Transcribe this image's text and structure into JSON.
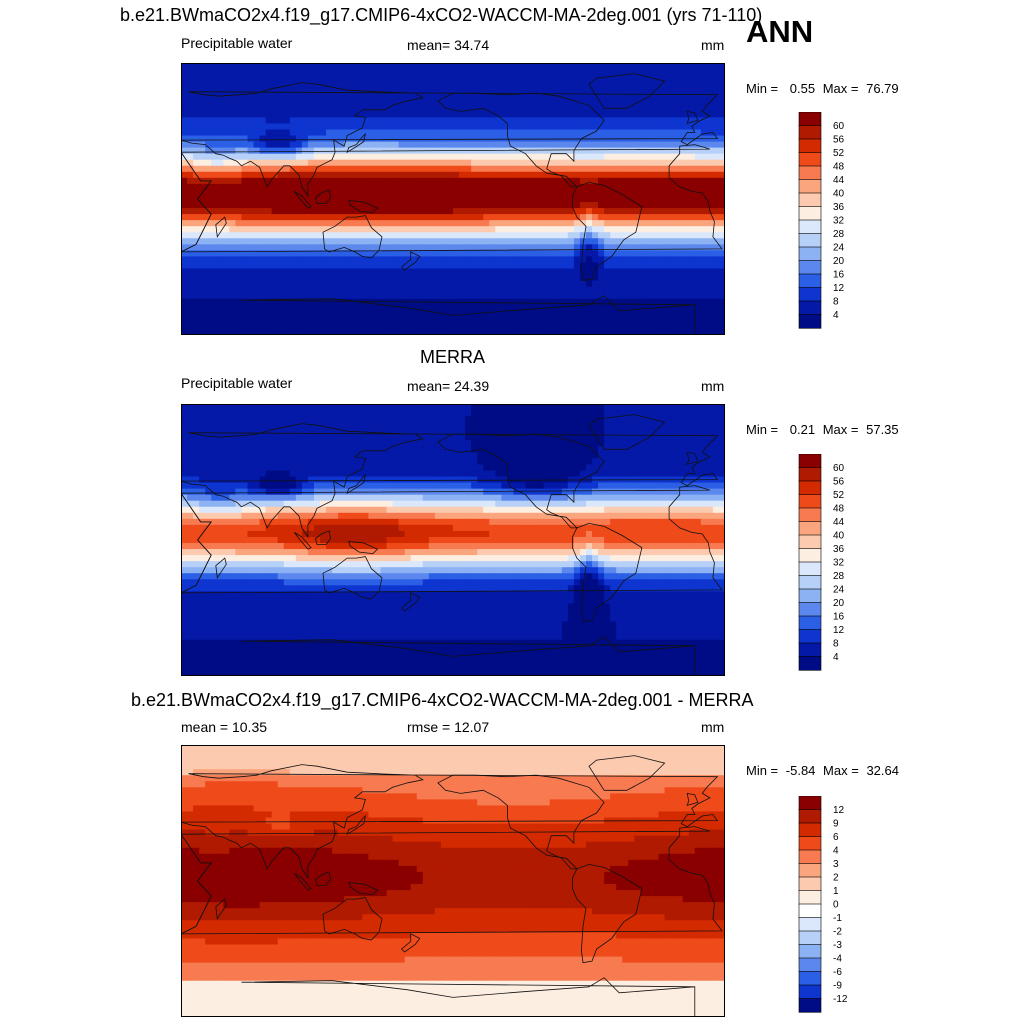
{
  "page": {
    "case_title": "b.e21.BWmaCO2x4.f19_g17.CMIP6-4xCO2-WACCM-MA-2deg.001 (yrs 71-110)",
    "season": "ANN"
  },
  "chart_data": [
    {
      "type": "heatmap",
      "panel_title": "",
      "variable": "Precipitable water",
      "stat_label": "mean=",
      "stat_value": "34.74",
      "units": "mm",
      "min_label": "Min =",
      "min": "0.55",
      "max_label": "Max =",
      "max": "76.79",
      "colorbar_levels": [
        "60",
        "56",
        "52",
        "48",
        "44",
        "40",
        "36",
        "32",
        "28",
        "24",
        "20",
        "16",
        "12",
        "8",
        "4"
      ],
      "colorbar_colors": [
        "#8a0000",
        "#b01a00",
        "#d42a00",
        "#ef4a1a",
        "#f77a50",
        "#fba57f",
        "#fccaae",
        "#fdeee2",
        "#dbe8fb",
        "#b6d0f8",
        "#8cb2f3",
        "#5c88ee",
        "#2b5fe6",
        "#0e35cf",
        "#0519a8",
        "#000c85"
      ],
      "field": "model_pw"
    },
    {
      "type": "heatmap",
      "panel_title": "MERRA",
      "variable": "Precipitable water",
      "stat_label": "mean=",
      "stat_value": "24.39",
      "units": "mm",
      "min_label": "Min =",
      "min": "0.21",
      "max_label": "Max =",
      "max": "57.35",
      "colorbar_levels": [
        "60",
        "56",
        "52",
        "48",
        "44",
        "40",
        "36",
        "32",
        "28",
        "24",
        "20",
        "16",
        "12",
        "8",
        "4"
      ],
      "colorbar_colors": [
        "#8a0000",
        "#b01a00",
        "#d42a00",
        "#ef4a1a",
        "#f77a50",
        "#fba57f",
        "#fccaae",
        "#fdeee2",
        "#dbe8fb",
        "#b6d0f8",
        "#8cb2f3",
        "#5c88ee",
        "#2b5fe6",
        "#0e35cf",
        "#0519a8",
        "#000c85"
      ],
      "field": "merra_pw"
    },
    {
      "type": "heatmap",
      "panel_title": "b.e21.BWmaCO2x4.f19_g17.CMIP6-4xCO2-WACCM-MA-2deg.001 - MERRA",
      "variable": "mean =  10.35",
      "stat_label": "rmse =",
      "stat_value": "12.07",
      "units": "mm",
      "min_label": "Min =",
      "min": "-5.84",
      "max_label": "Max =",
      "max": "32.64",
      "colorbar_levels": [
        "12",
        "9",
        "6",
        "4",
        "3",
        "2",
        "1",
        "0",
        "-1",
        "-2",
        "-3",
        "-4",
        "-6",
        "-9",
        "-12"
      ],
      "colorbar_colors": [
        "#8a0000",
        "#b01a00",
        "#d42a00",
        "#ef4a1a",
        "#f77a50",
        "#fba57f",
        "#fccaae",
        "#fdeee2",
        "#ffffff",
        "#dbe8fb",
        "#b6d0f8",
        "#8cb2f3",
        "#5c88ee",
        "#2b5fe6",
        "#0e35cf",
        "#000c85"
      ],
      "field": "diff_pw"
    }
  ]
}
